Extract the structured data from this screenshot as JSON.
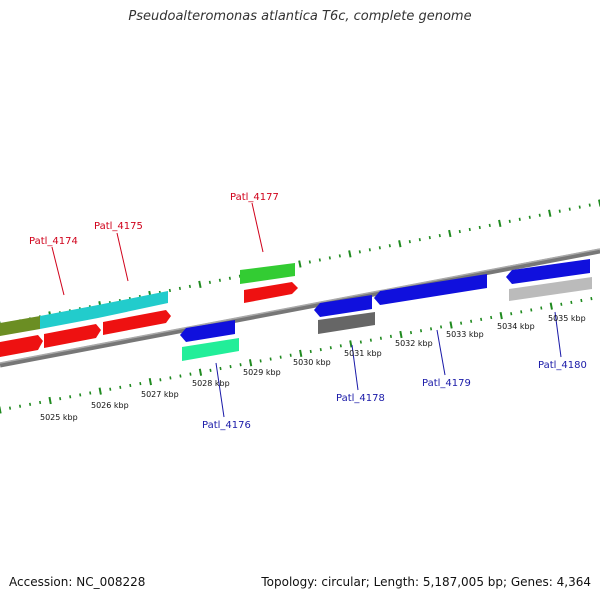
{
  "title": "Pseudoalteromonas atlantica T6c, complete genome",
  "footer": {
    "accession": "Accession: NC_008228",
    "summary": "Topology: circular; Length: 5,187,005 bp; Genes: 4,364"
  },
  "colors": {
    "backbone": "#8a8a8a",
    "tick": "#1f8a1f",
    "red": "#ee1111",
    "green": "#33cc33",
    "olive": "#6b8e23",
    "cyan": "#22cccc",
    "blue": "#1010dd",
    "mint": "#22ee99",
    "gray": "#666666",
    "lightgray": "#bbbbbb"
  },
  "tick_labels": [
    "5025 kbp",
    "5026 kbp",
    "5027 kbp",
    "5028 kbp",
    "5029 kbp",
    "5030 kbp",
    "5031 kbp",
    "5032 kbp",
    "5033 kbp",
    "5034 kbp",
    "5035 kbp"
  ],
  "gene_labels": [
    {
      "name": "Patl_4174",
      "strand": "plus"
    },
    {
      "name": "Patl_4175",
      "strand": "plus"
    },
    {
      "name": "Patl_4177",
      "strand": "plus"
    },
    {
      "name": "Patl_4176",
      "strand": "minus"
    },
    {
      "name": "Patl_4178",
      "strand": "minus"
    },
    {
      "name": "Patl_4179",
      "strand": "minus"
    },
    {
      "name": "Patl_4180",
      "strand": "minus"
    }
  ]
}
